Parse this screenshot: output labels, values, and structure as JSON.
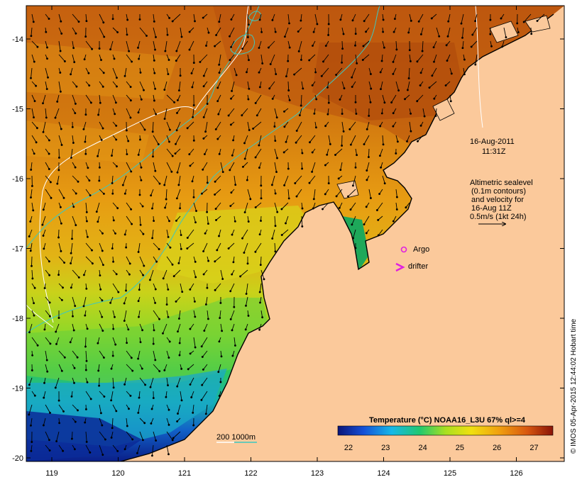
{
  "map": {
    "lon_ticks": [
      "119",
      "120",
      "121",
      "122",
      "123",
      "124",
      "125",
      "126"
    ],
    "lat_ticks": [
      "-14",
      "-15",
      "-16",
      "-17",
      "-18",
      "-19",
      "-20"
    ]
  },
  "annotations": {
    "date": "16-Aug-2011",
    "time": "11:31Z",
    "altimetry_lines": [
      "Altimetric sealevel",
      "(0.1m contours)",
      "and velocity for",
      "16-Aug 11Z",
      "0.5m/s (1kt 24h)"
    ],
    "argo_label": "Argo",
    "drifter_label": "drifter",
    "isobath_label": "200  1000m"
  },
  "colorbar": {
    "title": "Temperature (°C) NOAA16_L3U 67% ql>=4",
    "ticks": [
      "22",
      "23",
      "24",
      "25",
      "26",
      "27"
    ]
  },
  "credit": "© IMOS 05-Apr-2015 12:44:02 Hobart time",
  "colors": {
    "land": "#fbc99b",
    "isobath_200": "#ffffff",
    "isobath_1000": "#3cc8c0",
    "argo_marker": "#e020e0",
    "drifter_marker": "#e020e0"
  }
}
